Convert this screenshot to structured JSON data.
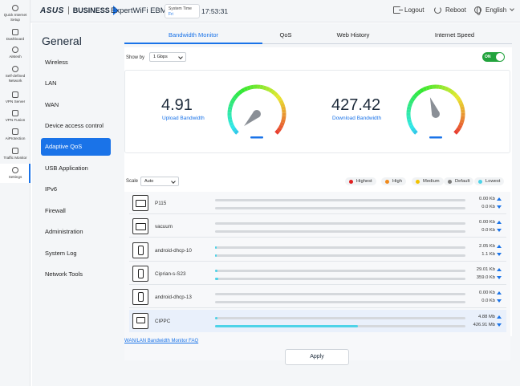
{
  "header": {
    "brand": "ASUS",
    "brand_sub": "BUSINESS",
    "model": "ExpertWiFi EBM68",
    "system_time_label": "System Time",
    "system_day": "Fri",
    "clock": "17:53:31",
    "logout_label": "Logout",
    "reboot_label": "Reboot",
    "language_label": "English"
  },
  "rail": {
    "items": [
      {
        "label": "Quick Internet Setup"
      },
      {
        "label": "Dashboard"
      },
      {
        "label": "AiMesh"
      },
      {
        "label": "Self-defined Network"
      },
      {
        "label": "VPN Server"
      },
      {
        "label": "VPN Fusion"
      },
      {
        "label": "AiProtection"
      },
      {
        "label": "Traffic Monitor"
      },
      {
        "label": "Settings"
      }
    ]
  },
  "menu": {
    "title": "General",
    "items": [
      {
        "label": "Wireless"
      },
      {
        "label": "LAN"
      },
      {
        "label": "WAN"
      },
      {
        "label": "Device access control"
      },
      {
        "label": "Adaptive QoS"
      },
      {
        "label": "USB Application"
      },
      {
        "label": "IPv6"
      },
      {
        "label": "Firewall"
      },
      {
        "label": "Administration"
      },
      {
        "label": "System Log"
      },
      {
        "label": "Network Tools"
      }
    ],
    "active_index": 4
  },
  "tabs": [
    {
      "label": "Bandwidth Monitor"
    },
    {
      "label": "QoS"
    },
    {
      "label": "Web History"
    },
    {
      "label": "Internet Speed"
    }
  ],
  "controls": {
    "show_by_label": "Show by",
    "show_by_value": "1 Gbps",
    "toggle_label": "ON",
    "scale_label": "Scale",
    "scale_value": "Auto"
  },
  "bandwidth": {
    "upload_value": "4.91",
    "upload_label": "Upload Bandwidth",
    "download_value": "427.42",
    "download_label": "Download Bandwidth",
    "upload_gauge_fraction": 0.005,
    "download_gauge_fraction": 0.43
  },
  "legend": [
    {
      "label": "Highest",
      "color": "#e02020"
    },
    {
      "label": "High",
      "color": "#f08a1c"
    },
    {
      "label": "Medium",
      "color": "#f2c200"
    },
    {
      "label": "Default",
      "color": "#7a7a7a"
    },
    {
      "label": "Lowest",
      "color": "#4dd3e8"
    }
  ],
  "clients": [
    {
      "name": "P115",
      "icon": "smart-plug-icon",
      "up": "0.00 Kb",
      "down": "0.0 Kb",
      "up_fraction": 0,
      "down_fraction": 0
    },
    {
      "name": "vacuum",
      "icon": "vacuum-icon",
      "up": "0.00 Kb",
      "down": "0.0 Kb",
      "up_fraction": 0,
      "down_fraction": 0
    },
    {
      "name": "android-dhcp-10",
      "icon": "phone-icon",
      "up": "2.05 Kb",
      "down": "1.1 Kb",
      "up_fraction": 0.008,
      "down_fraction": 0.005
    },
    {
      "name": "Ciprian-s-S23",
      "icon": "phone-icon",
      "up": "29.01 Kb",
      "down": "359.0 Kb",
      "up_fraction": 0.01,
      "down_fraction": 0.012
    },
    {
      "name": "android-dhcp-13",
      "icon": "phone-icon",
      "up": "0.00 Kb",
      "down": "0.0 Kb",
      "up_fraction": 0,
      "down_fraction": 0
    },
    {
      "name": "CIPPC",
      "icon": "monitor-icon",
      "up": "4.88 Mb",
      "down": "426.91 Mb",
      "up_fraction": 0.01,
      "down_fraction": 0.57
    }
  ],
  "footer": {
    "faq_link": "WAN/LAN Bandwidth Monitor FAQ",
    "apply_label": "Apply"
  }
}
